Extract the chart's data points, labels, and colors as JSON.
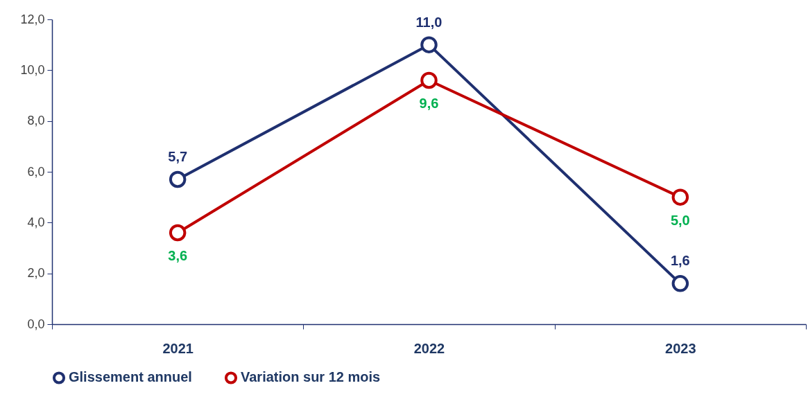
{
  "chart_data": {
    "type": "line",
    "categories": [
      "2021",
      "2022",
      "2023"
    ],
    "series": [
      {
        "name": "Glissement annuel",
        "color": "#1f3070",
        "values": [
          5.7,
          11.0,
          1.6
        ],
        "value_labels": [
          "5,7",
          "11,0",
          "1,6"
        ]
      },
      {
        "name": "Variation sur 12 mois",
        "color": "#c00000",
        "values": [
          3.6,
          9.6,
          5.0
        ],
        "value_labels": [
          "3,6",
          "9,6",
          "5,0"
        ]
      }
    ],
    "ylim": [
      0,
      12
    ],
    "yticks": [
      {
        "value": 0,
        "label": "0,0"
      },
      {
        "value": 2,
        "label": "2,0"
      },
      {
        "value": 4,
        "label": "4,0"
      },
      {
        "value": 6,
        "label": "6,0"
      },
      {
        "value": 8,
        "label": "8,0"
      },
      {
        "value": 10,
        "label": "10,0"
      },
      {
        "value": 12,
        "label": "12,0"
      }
    ],
    "grid": false,
    "legend": "bottom",
    "marker": "circle",
    "line_style": "solid"
  }
}
